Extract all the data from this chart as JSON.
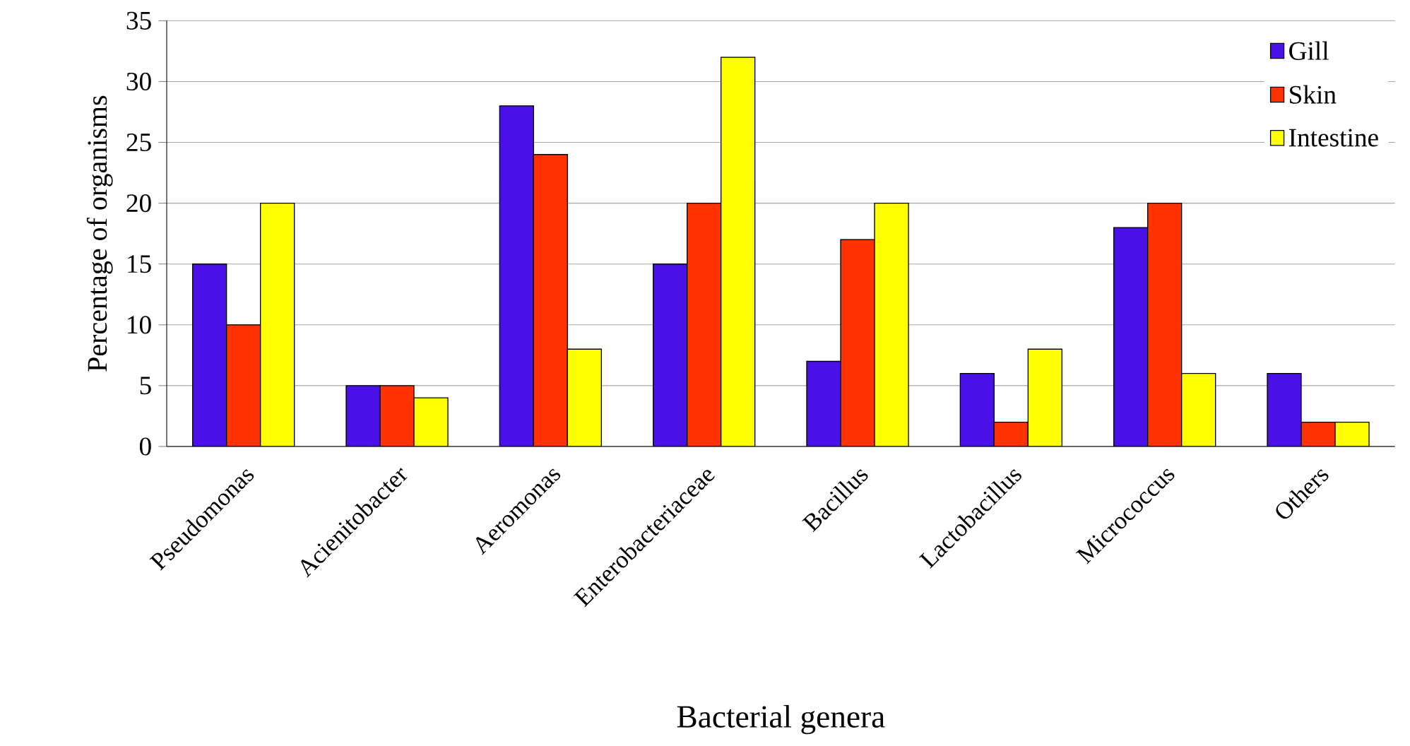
{
  "chart_data": {
    "type": "bar",
    "xlabel": "Bacterial genera",
    "ylabel": "Percentage of organisms",
    "categories": [
      "Pseudomonas",
      "Acienitobacter",
      "Aeromonas",
      "Enterobacteriaceae",
      "Bacillus",
      "Lactobacillus",
      "Micrococcus",
      "Others"
    ],
    "series": [
      {
        "name": "Gill",
        "color": "#4a10e8",
        "values": [
          15,
          5,
          28,
          15,
          7,
          6,
          18,
          6
        ]
      },
      {
        "name": "Skin",
        "color": "#ff3300",
        "values": [
          10,
          5,
          24,
          20,
          17,
          2,
          20,
          2
        ]
      },
      {
        "name": "Intestine",
        "color": "#ffff00",
        "values": [
          20,
          4,
          8,
          32,
          20,
          8,
          6,
          2
        ]
      }
    ],
    "ylim": [
      0,
      35
    ],
    "yticks": [
      0,
      5,
      10,
      15,
      20,
      25,
      30,
      35
    ],
    "grid": "y",
    "legend": "top right"
  }
}
